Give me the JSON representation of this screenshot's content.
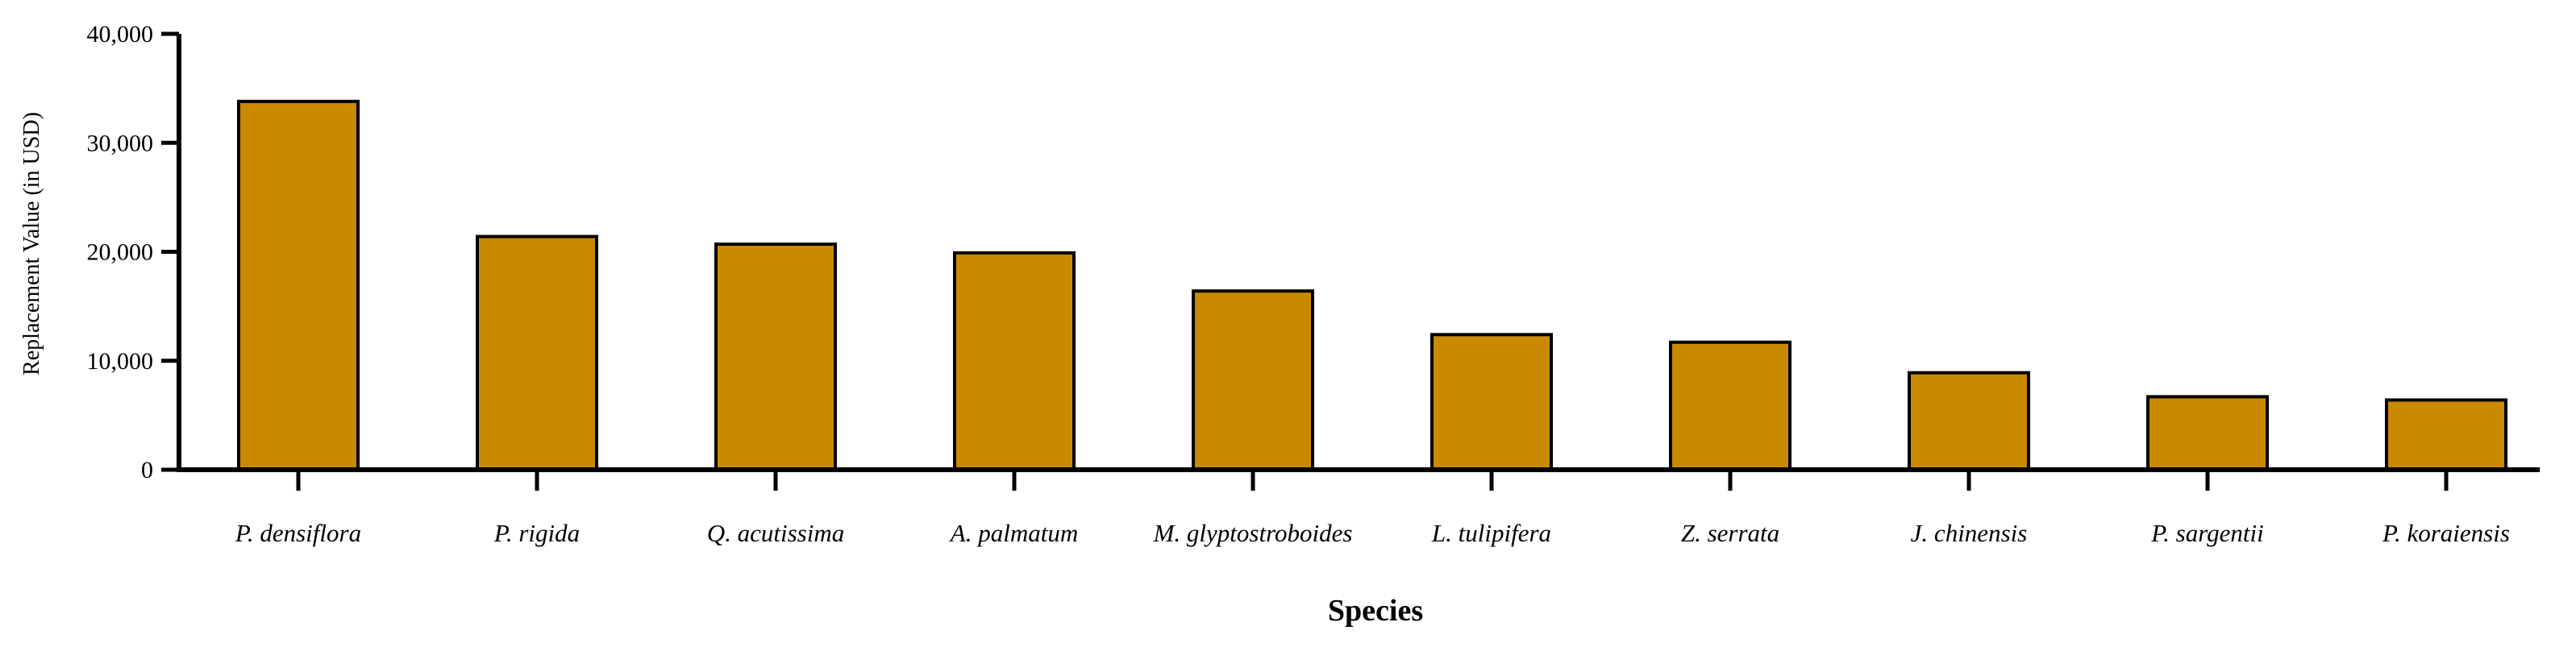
{
  "chart_data": {
    "type": "bar",
    "title": "",
    "xlabel": "Species",
    "ylabel": "Replacement Value (in USD)",
    "ylim": [
      0,
      40000
    ],
    "y_ticks": [
      0,
      10000,
      20000,
      30000,
      40000
    ],
    "y_tick_labels": [
      "0",
      "10,000",
      "20,000",
      "30,000",
      "40,000"
    ],
    "categories": [
      "P. densiflora",
      "P. rigida",
      "Q. acutissima",
      "A. palmatum",
      "M. glyptostroboides",
      "L. tulipifera",
      "Z. serrata",
      "J. chinensis",
      "P. sargentii",
      "P. koraiensis"
    ],
    "values": [
      33800,
      21400,
      20700,
      19900,
      16400,
      12400,
      11700,
      8900,
      6700,
      6400
    ],
    "grid": false,
    "legend": "none",
    "colors": {
      "bar_fill": "#C98A00",
      "bar_stroke": "#000000",
      "axis": "#000000"
    }
  }
}
